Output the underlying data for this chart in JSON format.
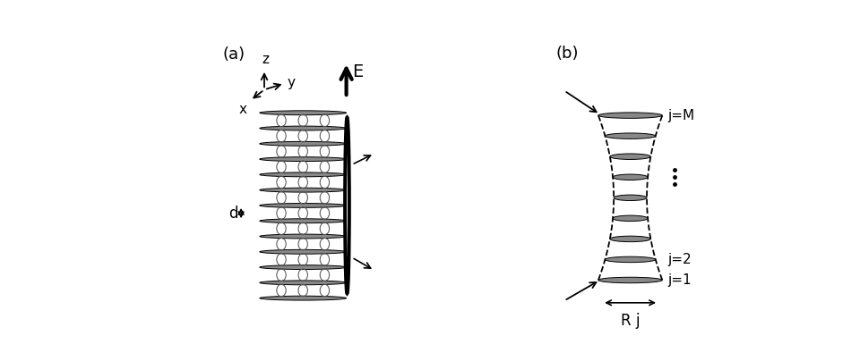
{
  "bg_color": "#ffffff",
  "panel_a_label": "(a)",
  "panel_b_label": "(b)",
  "E_label": "E",
  "d_label": "d",
  "Rj_label": "R j",
  "jM_label": "j=M",
  "j2_label": "j=2",
  "j1_label": "j=1",
  "disk_color": "#888888",
  "disk_edge_color": "#555555",
  "num_disks_a": 13,
  "num_disks_b": 9,
  "axis_color": "#000000",
  "text_color": "#000000",
  "loop_color": "#555555"
}
